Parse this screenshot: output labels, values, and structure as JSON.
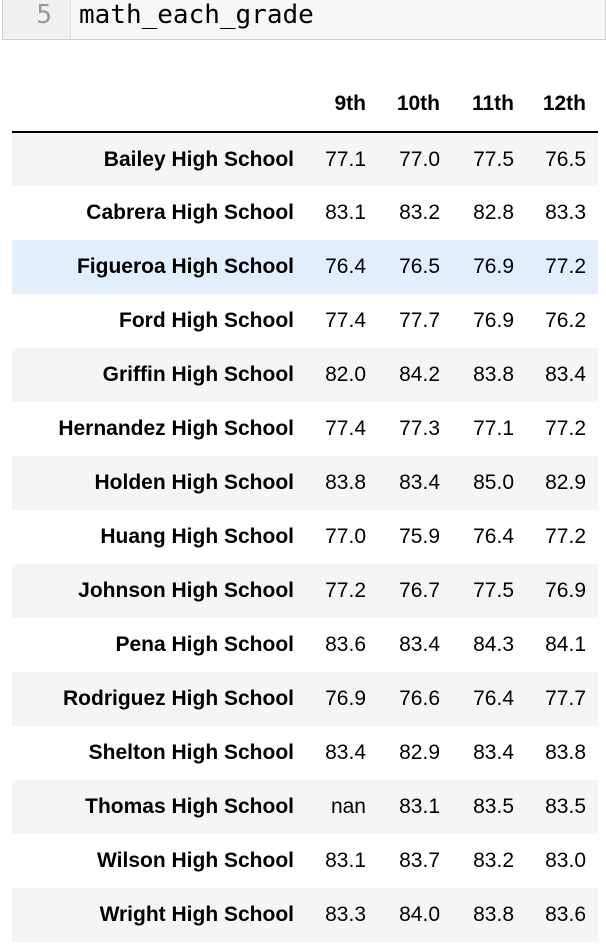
{
  "code_cell": {
    "line_number": "5",
    "code": "math_each_grade"
  },
  "table": {
    "columns": [
      "",
      "9th",
      "10th",
      "11th",
      "12th"
    ],
    "highlighted_row": 2,
    "rows": [
      {
        "school": "Bailey High School",
        "values": [
          "77.1",
          "77.0",
          "77.5",
          "76.5"
        ]
      },
      {
        "school": "Cabrera High School",
        "values": [
          "83.1",
          "83.2",
          "82.8",
          "83.3"
        ]
      },
      {
        "school": "Figueroa High School",
        "values": [
          "76.4",
          "76.5",
          "76.9",
          "77.2"
        ]
      },
      {
        "school": "Ford High School",
        "values": [
          "77.4",
          "77.7",
          "76.9",
          "76.2"
        ]
      },
      {
        "school": "Griffin High School",
        "values": [
          "82.0",
          "84.2",
          "83.8",
          "83.4"
        ]
      },
      {
        "school": "Hernandez High School",
        "values": [
          "77.4",
          "77.3",
          "77.1",
          "77.2"
        ]
      },
      {
        "school": "Holden High School",
        "values": [
          "83.8",
          "83.4",
          "85.0",
          "82.9"
        ]
      },
      {
        "school": "Huang High School",
        "values": [
          "77.0",
          "75.9",
          "76.4",
          "77.2"
        ]
      },
      {
        "school": "Johnson High School",
        "values": [
          "77.2",
          "76.7",
          "77.5",
          "76.9"
        ]
      },
      {
        "school": "Pena High School",
        "values": [
          "83.6",
          "83.4",
          "84.3",
          "84.1"
        ]
      },
      {
        "school": "Rodriguez High School",
        "values": [
          "76.9",
          "76.6",
          "76.4",
          "77.7"
        ]
      },
      {
        "school": "Shelton High School",
        "values": [
          "83.4",
          "82.9",
          "83.4",
          "83.8"
        ]
      },
      {
        "school": "Thomas High School",
        "values": [
          "nan",
          "83.1",
          "83.5",
          "83.5"
        ]
      },
      {
        "school": "Wilson High School",
        "values": [
          "83.1",
          "83.7",
          "83.2",
          "83.0"
        ]
      },
      {
        "school": "Wright High School",
        "values": [
          "83.3",
          "84.0",
          "83.8",
          "83.6"
        ]
      }
    ]
  },
  "colors": {
    "row_stripe": "#f5f5f5",
    "row_hover": "#e1effd",
    "header_rule": "#000000"
  }
}
